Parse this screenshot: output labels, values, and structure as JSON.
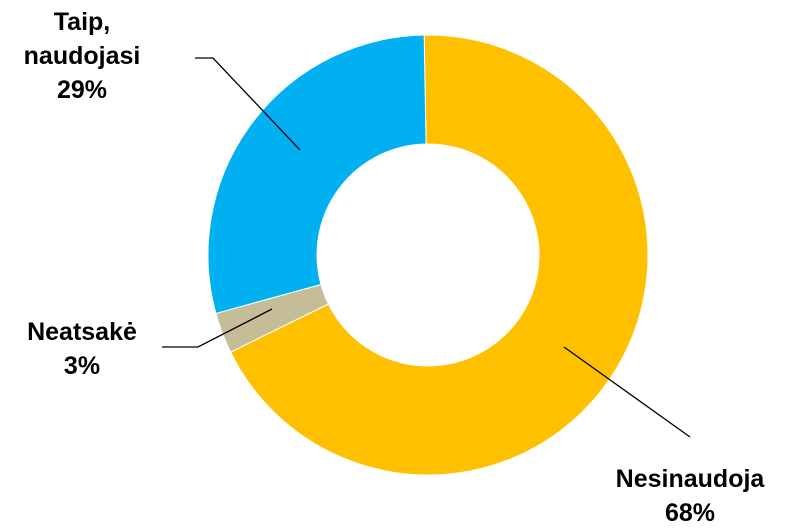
{
  "chart_data": {
    "type": "donut",
    "title": "",
    "legend": "none",
    "slices": [
      {
        "name": "Nesinaudoja",
        "value": 68,
        "value_label": "68%",
        "color": "#FFC000",
        "label_lines": [
          "Nesinaudoja",
          "68%"
        ]
      },
      {
        "name": "Neatsakė",
        "value": 3,
        "value_label": "3%",
        "color": "#C4BD97",
        "label_lines": [
          "Neatsakė",
          "3%"
        ]
      },
      {
        "name": "Taip, naudojasi",
        "value": 29,
        "value_label": "29%",
        "color": "#00B0F0",
        "label_lines": [
          "Taip,",
          "naudojasi",
          "29%"
        ]
      }
    ]
  }
}
